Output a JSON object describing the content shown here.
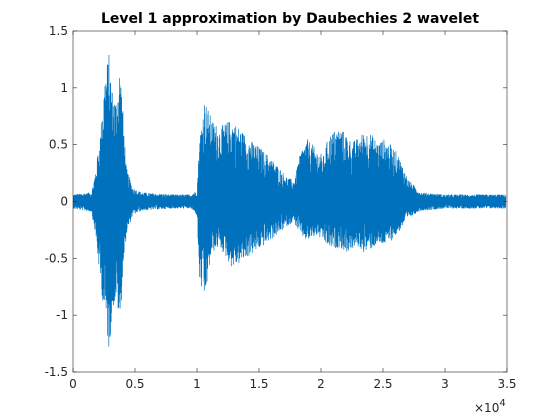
{
  "colors": {
    "signal": "#0072BD",
    "axes": "#262626",
    "background": "#ffffff"
  },
  "chart_data": {
    "type": "line",
    "title": "Level 1 approximation by Daubechies 2 wavelet",
    "xlabel": "",
    "ylabel": "",
    "xlim": [
      0,
      35000
    ],
    "ylim": [
      -1.5,
      1.5
    ],
    "x_ticks": [
      0,
      5000,
      10000,
      15000,
      20000,
      25000,
      30000,
      35000
    ],
    "x_tick_labels": [
      "0",
      "0.5",
      "1",
      "1.5",
      "2",
      "2.5",
      "3",
      "3.5"
    ],
    "x_exponent_label": "×10",
    "x_exponent_power": "4",
    "y_ticks": [
      -1.5,
      -1,
      -0.5,
      0,
      0.5,
      1,
      1.5
    ],
    "y_tick_labels": [
      "-1.5",
      "-1",
      "-0.5",
      "0",
      "0.5",
      "1",
      "1.5"
    ],
    "grid": false,
    "box": true,
    "series": [
      {
        "color": "#0072BD",
        "x_range": [
          0,
          34900
        ],
        "envelope": {
          "x": [
            0,
            1500,
            1800,
            2200,
            2600,
            2900,
            3200,
            3500,
            3800,
            4000,
            4300,
            4800,
            5500,
            6500,
            8000,
            9500,
            10000,
            10200,
            10600,
            11200,
            11800,
            12400,
            12800,
            13400,
            14200,
            15000,
            15800,
            16600,
            17200,
            17800,
            18400,
            18900,
            19300,
            19700,
            20200,
            20600,
            21000,
            21500,
            22000,
            22500,
            23000,
            23500,
            24000,
            24600,
            25100,
            25600,
            26200,
            27000,
            28000,
            30000,
            32000,
            34000,
            34900
          ],
          "upper": [
            0.06,
            0.08,
            0.25,
            0.6,
            1.15,
            1.3,
            0.95,
            0.9,
            1.22,
            0.85,
            0.3,
            0.12,
            0.08,
            0.07,
            0.06,
            0.06,
            0.1,
            0.55,
            0.9,
            0.72,
            0.65,
            0.7,
            0.72,
            0.65,
            0.55,
            0.48,
            0.4,
            0.3,
            0.22,
            0.18,
            0.45,
            0.55,
            0.5,
            0.45,
            0.4,
            0.58,
            0.62,
            0.65,
            0.6,
            0.52,
            0.56,
            0.62,
            0.6,
            0.52,
            0.55,
            0.5,
            0.42,
            0.2,
            0.08,
            0.06,
            0.06,
            0.06,
            0.06
          ],
          "lower": [
            -0.06,
            -0.09,
            -0.28,
            -0.7,
            -1.05,
            -1.32,
            -0.95,
            -0.85,
            -1.12,
            -0.65,
            -0.3,
            -0.12,
            -0.08,
            -0.07,
            -0.06,
            -0.06,
            -0.12,
            -0.7,
            -0.88,
            -0.45,
            -0.4,
            -0.5,
            -0.58,
            -0.55,
            -0.48,
            -0.42,
            -0.35,
            -0.28,
            -0.22,
            -0.18,
            -0.3,
            -0.35,
            -0.32,
            -0.3,
            -0.35,
            -0.4,
            -0.42,
            -0.4,
            -0.45,
            -0.42,
            -0.4,
            -0.45,
            -0.42,
            -0.38,
            -0.38,
            -0.35,
            -0.28,
            -0.15,
            -0.08,
            -0.06,
            -0.06,
            -0.06,
            -0.06
          ]
        }
      }
    ]
  }
}
